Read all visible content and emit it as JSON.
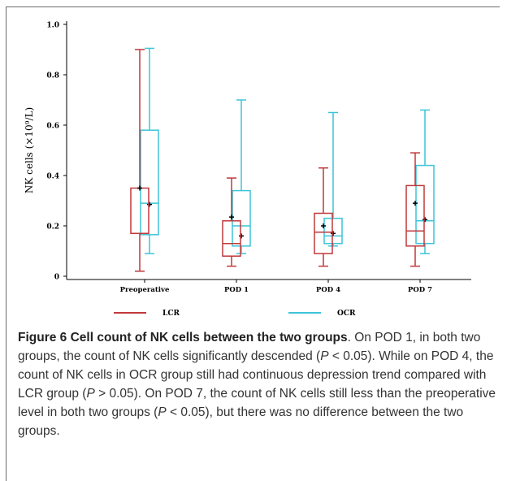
{
  "chart_data": {
    "type": "box",
    "ylabel": "NK cells (×10⁹/L)",
    "ylim": [
      0,
      1.0
    ],
    "yticks": [
      "0",
      "0.2",
      "0.4",
      "0.6",
      "0.8",
      "1.0"
    ],
    "categories": [
      "Preoperative",
      "POD 1",
      "POD 4",
      "POD 7"
    ],
    "legend_position": "bottom",
    "series": [
      {
        "name": "LCR",
        "color": "#c0393b",
        "boxes": [
          {
            "min": 0.02,
            "q1": 0.17,
            "median": 0.17,
            "q3": 0.35,
            "max": 0.9,
            "mean": 0.35
          },
          {
            "min": 0.04,
            "q1": 0.08,
            "median": 0.13,
            "q3": 0.22,
            "max": 0.39,
            "mean": 0.235
          },
          {
            "min": 0.04,
            "q1": 0.09,
            "median": 0.175,
            "q3": 0.25,
            "max": 0.43,
            "mean": 0.2
          },
          {
            "min": 0.04,
            "q1": 0.12,
            "median": 0.18,
            "q3": 0.36,
            "max": 0.49,
            "mean": 0.29
          }
        ]
      },
      {
        "name": "OCR",
        "color": "#3cc4d8",
        "boxes": [
          {
            "min": 0.09,
            "q1": 0.165,
            "median": 0.29,
            "q3": 0.58,
            "max": 0.905,
            "mean": 0.285
          },
          {
            "min": 0.09,
            "q1": 0.12,
            "median": 0.2,
            "q3": 0.34,
            "max": 0.7,
            "mean": 0.16
          },
          {
            "min": 0.12,
            "q1": 0.13,
            "median": 0.16,
            "q3": 0.23,
            "max": 0.65,
            "mean": 0.17
          },
          {
            "min": 0.09,
            "q1": 0.13,
            "median": 0.22,
            "q3": 0.44,
            "max": 0.66,
            "mean": 0.225
          }
        ]
      }
    ]
  },
  "caption": {
    "title": "Figure 6 Cell count of NK cells between the two groups",
    "t1": ". On POD 1, in both two groups, the count of NK cells significantly descended (",
    "p": "P",
    "t2": " < 0.05). While on POD 4, the count of NK cells in OCR group still had continuous depression trend compared with LCR group (",
    "t3": " > 0.05). On POD 7, the count of NK cells still less than the preoperative level in both two groups (",
    "t4": " < 0.05), but there was no difference between the two groups."
  }
}
